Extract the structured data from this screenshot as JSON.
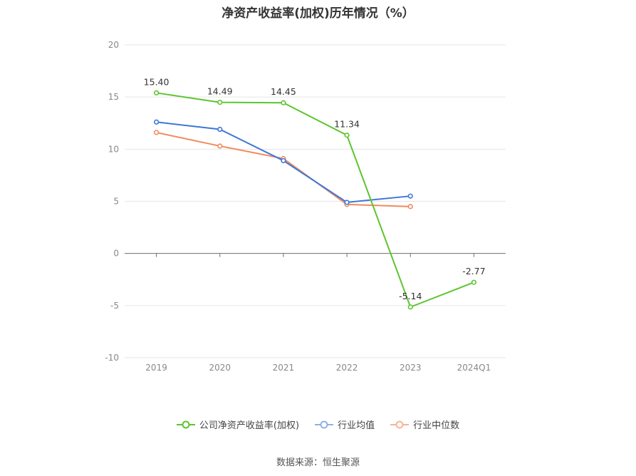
{
  "chart_data": {
    "type": "line",
    "title": "净资产收益率(加权)历年情况（%）",
    "categories": [
      "2019",
      "2020",
      "2021",
      "2022",
      "2023",
      "2024Q1"
    ],
    "ylim": [
      -10,
      20
    ],
    "yticks": [
      -10,
      -5,
      0,
      5,
      10,
      15,
      20
    ],
    "grid": true,
    "legend_position": "bottom",
    "series": [
      {
        "name": "公司净资产收益率(加权)",
        "color": "#5cc52f",
        "values": [
          15.4,
          14.49,
          14.45,
          11.34,
          -5.14,
          -2.77
        ],
        "labels": [
          "15.40",
          "14.49",
          "14.45",
          "11.34",
          "-5.14",
          "-2.77"
        ]
      },
      {
        "name": "行业均值",
        "color": "#3e77d6",
        "values": [
          12.6,
          11.9,
          8.9,
          4.9,
          5.5,
          null
        ]
      },
      {
        "name": "行业中位数",
        "color": "#f08a5d",
        "values": [
          11.6,
          10.3,
          9.1,
          4.7,
          4.5,
          null
        ]
      }
    ]
  },
  "source": "数据来源：恒生聚源"
}
